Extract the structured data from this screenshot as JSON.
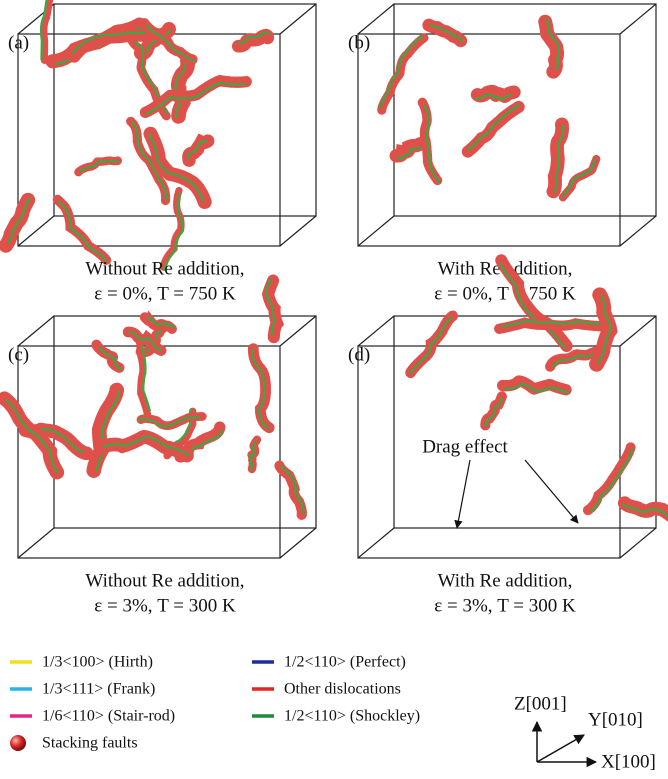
{
  "panels": [
    {
      "label": "(a)",
      "caption": [
        "Without Re addition,",
        "ε = 0%, T = 750 K"
      ]
    },
    {
      "label": "(b)",
      "caption": [
        "With Re addition,",
        "ε = 0%, T = 750 K"
      ]
    },
    {
      "label": "(c)",
      "caption": [
        "Without Re addition,",
        "ε = 3%, T = 300 K"
      ]
    },
    {
      "label": "(d)",
      "caption": [
        "With Re addition,",
        "ε = 3%, T = 300 K"
      ]
    }
  ],
  "annotation": "Drag effect",
  "legend": [
    {
      "label": "1/3<100> (Hirth)",
      "color": "#f0e21a"
    },
    {
      "label": "1/2<110> (Perfect)",
      "color": "#1c2f9c"
    },
    {
      "label": "1/3<111> (Frank)",
      "color": "#2ab4e6"
    },
    {
      "label": "Other dislocations",
      "color": "#e52421"
    },
    {
      "label": "1/6<110> (Stair-rod)",
      "color": "#e0288c"
    },
    {
      "label": "1/2<110> (Shockley)",
      "color": "#1f8a3b"
    },
    {
      "label": "Stacking faults",
      "color": "#d42a2a",
      "marker": "sphere"
    }
  ],
  "axes": {
    "z": "Z[001]",
    "y": "Y[010]",
    "x": "X[100]"
  }
}
